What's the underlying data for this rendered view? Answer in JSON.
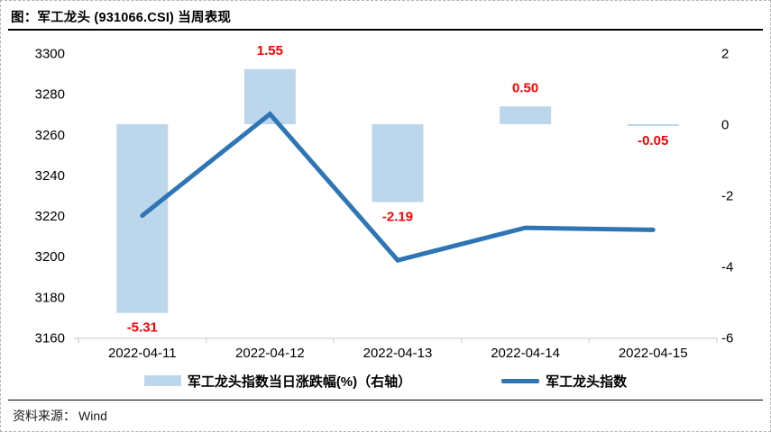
{
  "header": {
    "title": "图：军工龙头 (931066.CSI) 当周表现"
  },
  "footer": {
    "source_label": "资料来源：",
    "source_value": "Wind"
  },
  "legend": {
    "position": "bottom",
    "items": [
      {
        "label": "军工龙头指数当日涨跌幅(%)（右轴）",
        "swatch": "bar",
        "color": "#BCD6EC"
      },
      {
        "label": "军工龙头指数",
        "swatch": "line",
        "color": "#2E75B6"
      }
    ]
  },
  "chart_data": {
    "type": "combo",
    "title": "图：军工龙头 (931066.CSI) 当周表现",
    "categories": [
      "2022-04-11",
      "2022-04-12",
      "2022-04-13",
      "2022-04-14",
      "2022-04-15"
    ],
    "series": [
      {
        "name": "军工龙头指数当日涨跌幅(%)（右轴）",
        "type": "bar",
        "axis": "right",
        "values": [
          -5.31,
          1.55,
          -2.19,
          0.5,
          -0.05
        ],
        "data_labels": [
          "-5.31",
          "1.55",
          "-2.19",
          "0.50",
          "-0.05"
        ],
        "color": "#BCD6EC",
        "label_color": "#FF0000"
      },
      {
        "name": "军工龙头指数",
        "type": "line",
        "axis": "left",
        "values": [
          3220,
          3270,
          3198,
          3214,
          3213
        ],
        "color": "#2E75B6"
      }
    ],
    "left_axis": {
      "min": 3160,
      "max": 3300,
      "step": 20,
      "ticks": [
        3300,
        3280,
        3260,
        3240,
        3220,
        3200,
        3180,
        3160
      ]
    },
    "right_axis": {
      "min": -6,
      "max": 2,
      "step": 2,
      "ticks": [
        2,
        0,
        -2,
        -4,
        -6
      ]
    },
    "grid": false,
    "legend_position": "bottom",
    "axis_color": "#D9D9D9",
    "tick_label_color": "#000000"
  }
}
